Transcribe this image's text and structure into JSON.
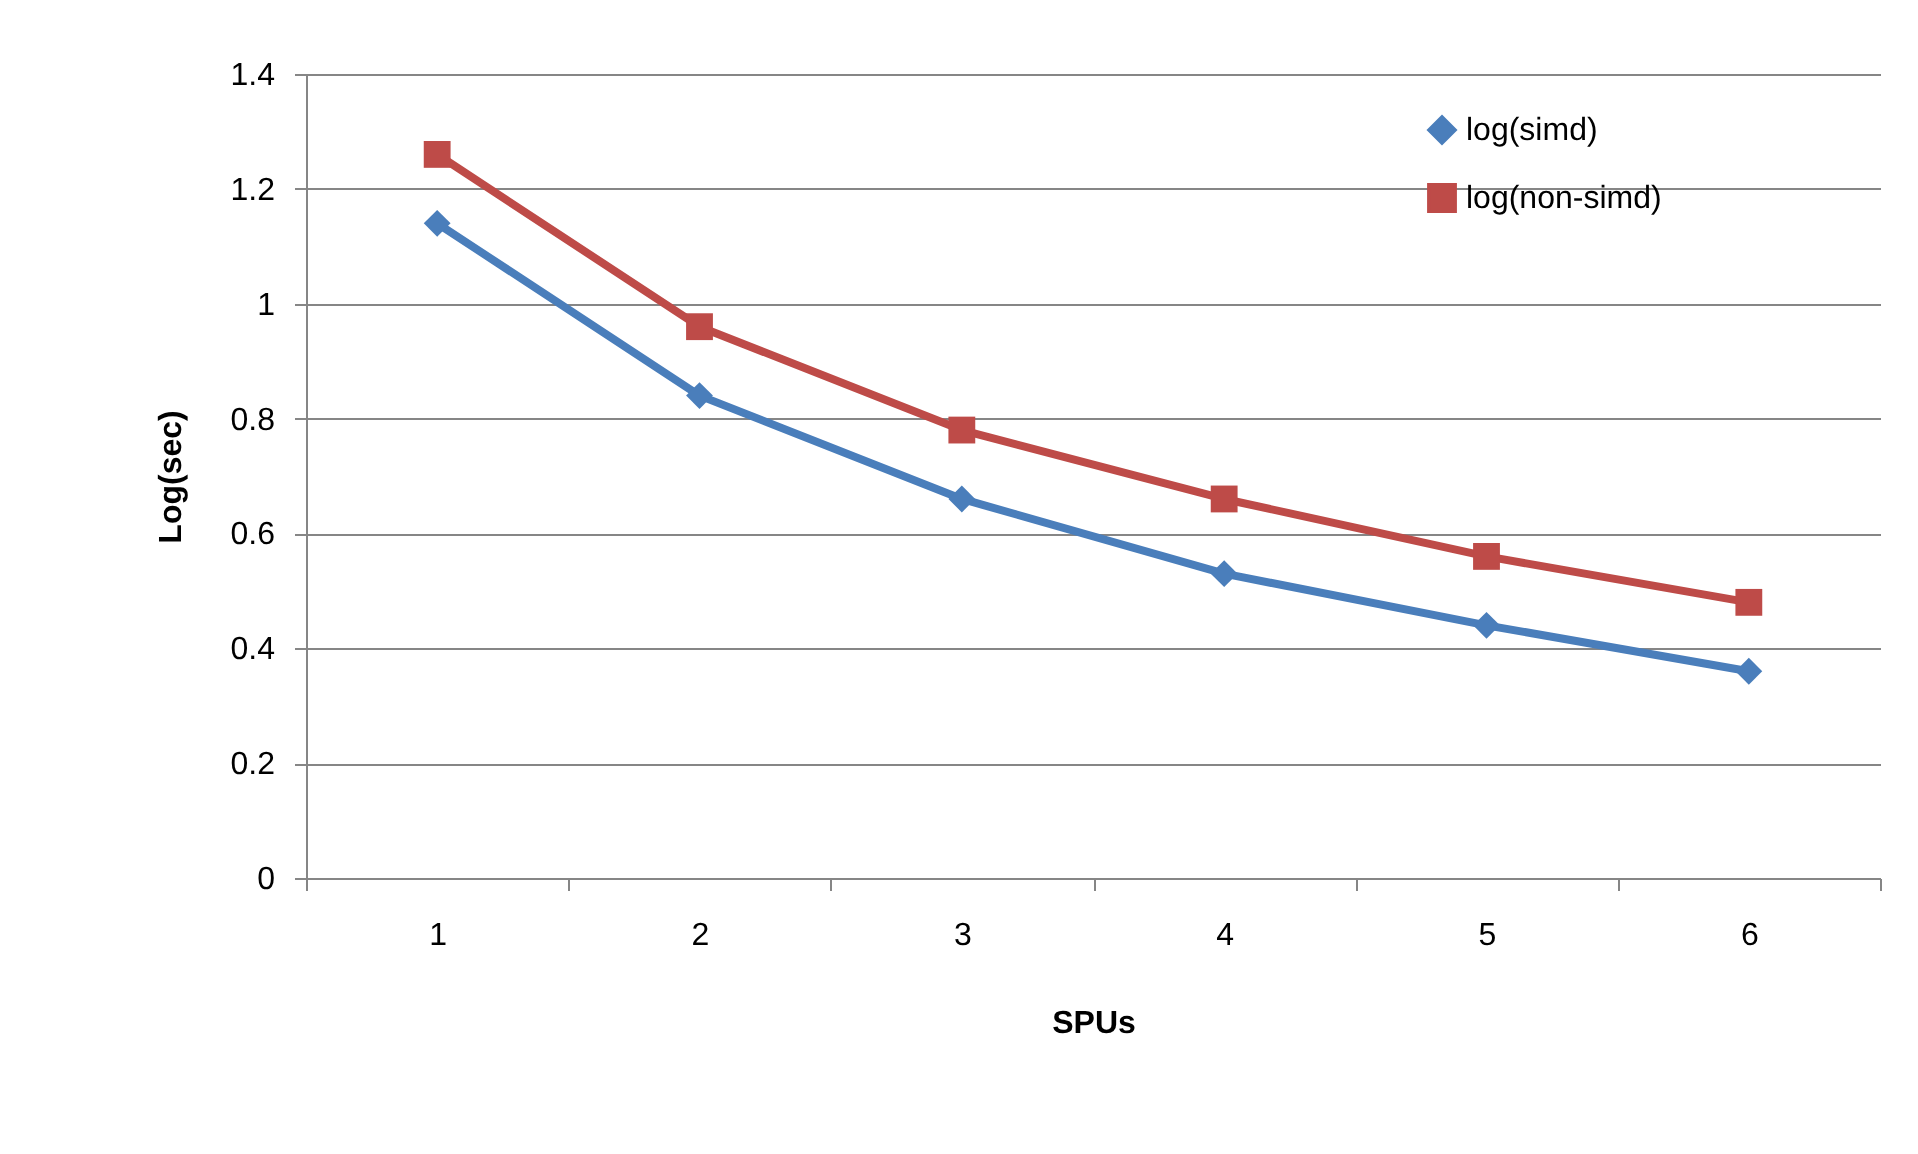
{
  "chart_data": {
    "type": "line",
    "xlabel": "SPUs",
    "ylabel": "Log(sec)",
    "categories": [
      "1",
      "2",
      "3",
      "4",
      "5",
      "6"
    ],
    "series": [
      {
        "name": "log(simd)",
        "color": "#4a7ebb",
        "marker": "diamond",
        "values": [
          1.14,
          0.84,
          0.66,
          0.53,
          0.44,
          0.36
        ]
      },
      {
        "name": "log(non-simd)",
        "color": "#be4b48",
        "marker": "square",
        "values": [
          1.26,
          0.96,
          0.78,
          0.66,
          0.56,
          0.48
        ]
      }
    ],
    "ylim": [
      0,
      1.4
    ],
    "yticks": [
      {
        "value": 0,
        "label": "0"
      },
      0.2,
      0.4,
      0.6,
      0.8,
      {
        "value": 1,
        "label": "1"
      },
      1.2,
      1.4
    ],
    "grid": "y",
    "legend": "top right",
    "line_style": "solid"
  }
}
